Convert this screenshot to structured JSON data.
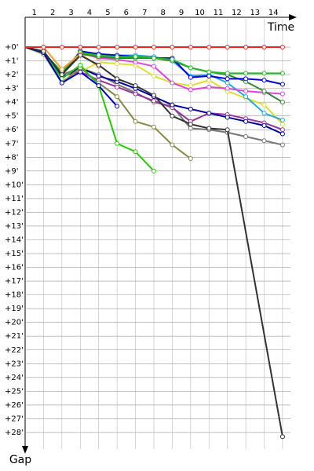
{
  "chart_data": {
    "type": "line",
    "x_label": "Time",
    "y_label": "Gap",
    "xlim": [
      0,
      14.6
    ],
    "ylim": [
      -0.8,
      29.2
    ],
    "xticks": [
      1,
      2,
      3,
      4,
      5,
      6,
      7,
      8,
      9,
      10,
      11,
      12,
      13,
      14
    ],
    "yticks": [
      {
        "value": 0,
        "label": "+0'"
      },
      {
        "value": 1,
        "label": "+1'"
      },
      {
        "value": 2,
        "label": "+2'"
      },
      {
        "value": 3,
        "label": "+3'"
      },
      {
        "value": 4,
        "label": "+4'"
      },
      {
        "value": 5,
        "label": "+5'"
      },
      {
        "value": 6,
        "label": "+6'"
      },
      {
        "value": 7,
        "label": "+7'"
      },
      {
        "value": 8,
        "label": "+8'"
      },
      {
        "value": 9,
        "label": "+9'"
      },
      {
        "value": 10,
        "label": "+10'"
      },
      {
        "value": 11,
        "label": "+11'"
      },
      {
        "value": 12,
        "label": "+12'"
      },
      {
        "value": 13,
        "label": "+13'"
      },
      {
        "value": 14,
        "label": "+14'"
      },
      {
        "value": 15,
        "label": "+15'"
      },
      {
        "value": 16,
        "label": "+16'"
      },
      {
        "value": 17,
        "label": "+17'"
      },
      {
        "value": 18,
        "label": "+18'"
      },
      {
        "value": 19,
        "label": "+19'"
      },
      {
        "value": 20,
        "label": "+20'"
      },
      {
        "value": 21,
        "label": "+21'"
      },
      {
        "value": 22,
        "label": "+22'"
      },
      {
        "value": 23,
        "label": "+23'"
      },
      {
        "value": 24,
        "label": "+24'"
      },
      {
        "value": 25,
        "label": "+25'"
      },
      {
        "value": 26,
        "label": "+26'"
      },
      {
        "value": 27,
        "label": "+27'"
      },
      {
        "value": 28,
        "label": "+28'"
      }
    ],
    "y_inverted": true,
    "grid": true,
    "series": [
      {
        "color": "#777777",
        "x": [
          0,
          1,
          2,
          3,
          4,
          5,
          6,
          7,
          8,
          9,
          10,
          11,
          12,
          13,
          14
        ],
        "values": [
          0,
          0.5,
          2.0,
          1.5,
          2.0,
          2.7,
          3.3,
          4.0,
          4.3,
          5.9,
          6.0,
          6.2,
          6.5,
          6.8,
          7.1
        ]
      },
      {
        "color": "#993399",
        "x": [
          0,
          1,
          2,
          3,
          4,
          5,
          6,
          7,
          8,
          9,
          10,
          11,
          12,
          13,
          14
        ],
        "values": [
          0,
          0.4,
          2.1,
          1.8,
          2.4,
          2.9,
          3.4,
          3.9,
          4.4,
          5.4,
          4.8,
          4.9,
          5.2,
          5.5,
          6.0
        ]
      },
      {
        "color": "#000099",
        "x": [
          0,
          1,
          2,
          3,
          4,
          5,
          6,
          7,
          8,
          9,
          10,
          11,
          12,
          13,
          14
        ],
        "values": [
          0,
          0.4,
          2.2,
          1.5,
          2.1,
          2.5,
          3.0,
          3.6,
          4.2,
          4.5,
          4.8,
          5.1,
          5.4,
          5.7,
          6.3
        ]
      },
      {
        "color": "#dddd33",
        "x": [
          0,
          1,
          2,
          3,
          4,
          5,
          6,
          7,
          8,
          9,
          10,
          11,
          12,
          13,
          14
        ],
        "values": [
          0,
          0.4,
          2.5,
          1.8,
          1.1,
          1.2,
          1.3,
          2.1,
          2.6,
          2.8,
          2.4,
          3.2,
          3.7,
          4.2,
          5.6
        ]
      },
      {
        "color": "#22aadd",
        "x": [
          0,
          1,
          2,
          3,
          4,
          5,
          6,
          7,
          8,
          9,
          10,
          11,
          12,
          13,
          14
        ],
        "values": [
          0,
          0.3,
          2.0,
          0.3,
          0.5,
          0.6,
          0.6,
          0.7,
          1.0,
          2.1,
          2.0,
          2.6,
          3.6,
          4.8,
          5.3
        ]
      },
      {
        "color": "#dd44dd",
        "x": [
          0,
          1,
          2,
          3,
          4,
          5,
          6,
          7,
          8,
          9,
          10,
          11,
          12,
          13,
          14
        ],
        "values": [
          0,
          0.4,
          2.0,
          0.4,
          0.8,
          0.9,
          1.1,
          1.4,
          2.6,
          3.1,
          2.9,
          3.0,
          3.2,
          3.3,
          3.4
        ]
      },
      {
        "color": "#338833",
        "x": [
          0,
          1,
          2,
          3,
          4,
          5,
          6,
          7,
          8,
          9,
          10,
          11,
          12,
          13,
          14
        ],
        "values": [
          0,
          0.4,
          1.8,
          0.5,
          0.7,
          0.8,
          0.8,
          0.8,
          1.0,
          1.5,
          1.8,
          2.0,
          2.5,
          3.2,
          4.0
        ]
      },
      {
        "color": "#0000dd",
        "x": [
          0,
          1,
          2,
          3,
          4,
          5,
          6,
          7,
          8,
          9,
          10,
          11,
          12,
          13,
          14
        ],
        "values": [
          0,
          0.4,
          2.0,
          0.3,
          0.5,
          0.6,
          0.7,
          0.8,
          0.8,
          2.2,
          2.1,
          2.3,
          2.3,
          2.4,
          2.7
        ]
      },
      {
        "color": "#22bb22",
        "x": [
          0,
          1,
          2,
          3,
          4,
          5,
          6,
          7,
          8,
          9,
          10,
          11,
          12,
          13,
          14
        ],
        "values": [
          0,
          0.4,
          1.8,
          0.4,
          0.6,
          0.7,
          0.7,
          0.8,
          0.9,
          1.5,
          1.8,
          1.9,
          1.9,
          1.9,
          1.9
        ]
      },
      {
        "color": "#888844",
        "x": [
          0,
          1,
          2,
          3,
          4,
          5,
          6,
          7,
          8,
          9
        ],
        "values": [
          0,
          0.5,
          2.6,
          1.5,
          2.6,
          3.6,
          5.4,
          5.8,
          7.1,
          8.1
        ]
      },
      {
        "color": "#22cc00",
        "x": [
          0,
          1,
          2,
          3,
          4,
          5,
          6,
          7
        ],
        "values": [
          0,
          0.4,
          2.3,
          1.3,
          2.8,
          7.0,
          7.6,
          9.0
        ]
      },
      {
        "color": "#0000cc",
        "x": [
          0,
          1,
          2,
          3,
          4,
          5
        ],
        "values": [
          0,
          0.4,
          2.6,
          1.8,
          2.8,
          4.3
        ]
      },
      {
        "color": "#ff9933",
        "x": [
          0,
          1,
          2,
          3,
          4
        ],
        "values": [
          0,
          0.0,
          1.6,
          0.5,
          1.4
        ]
      },
      {
        "color": "#333333",
        "x": [
          0,
          1,
          2,
          3,
          4,
          5,
          6,
          7,
          8,
          9,
          10,
          11,
          14
        ],
        "values": [
          0,
          0.3,
          2.0,
          0.6,
          1.3,
          2.3,
          2.8,
          3.5,
          5.0,
          5.6,
          5.9,
          6.0,
          28.3
        ]
      },
      {
        "color": "#ee2222",
        "x": [
          0,
          1,
          2,
          3,
          4,
          5,
          6,
          7,
          8,
          9,
          10,
          11,
          12,
          13,
          14
        ],
        "values": [
          0,
          0,
          0,
          0,
          0,
          0,
          0,
          0,
          0,
          0,
          0,
          0,
          0,
          0,
          0
        ]
      }
    ]
  }
}
